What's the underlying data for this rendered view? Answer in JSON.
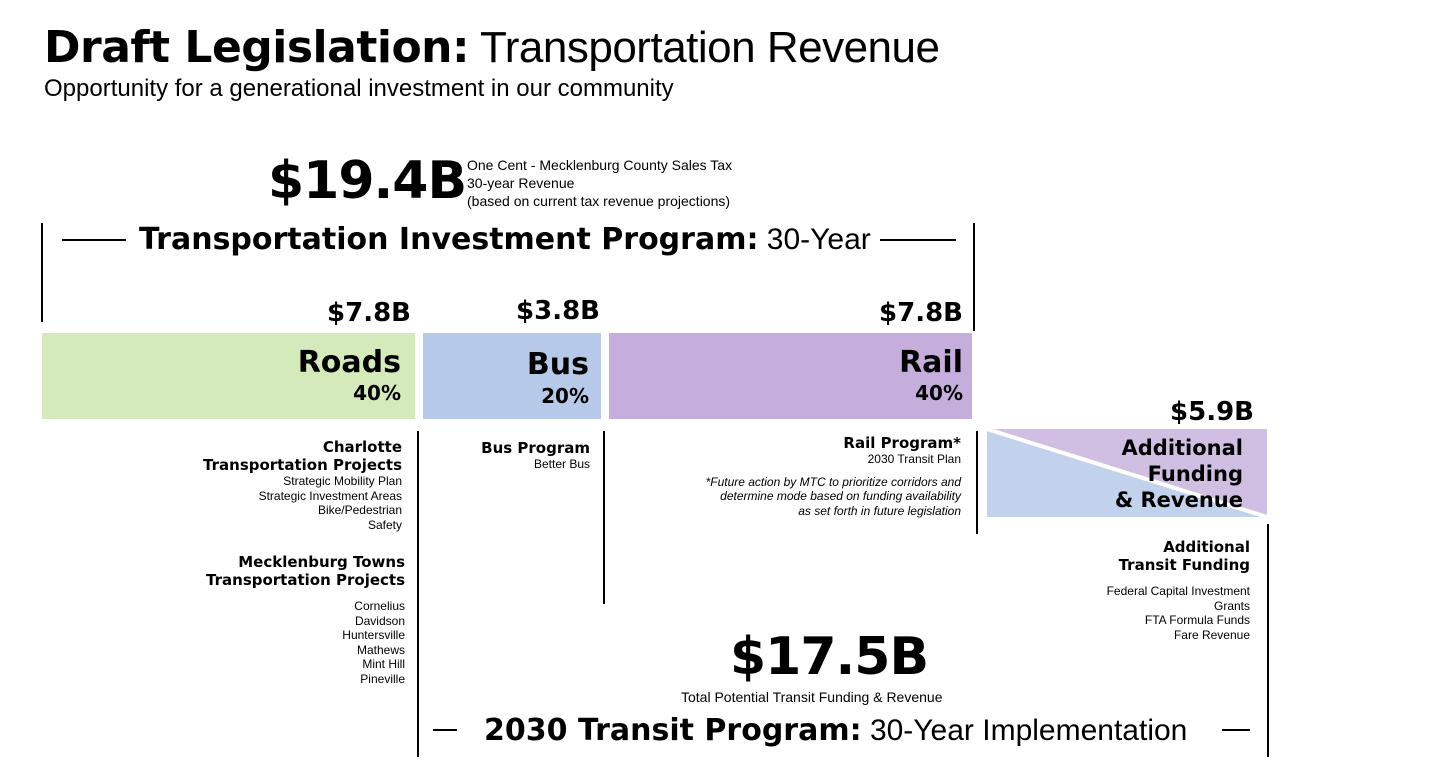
{
  "header": {
    "title_bold": "Draft Legislation:",
    "title_rest": "Transportation Revenue",
    "subtitle": "Opportunity for a generational investment in our community"
  },
  "sales_tax": {
    "amount": "$19.4B",
    "line1": "One Cent - Mecklenburg County Sales Tax",
    "line2": "30-year Revenue",
    "line3": "(based on current tax revenue projections)"
  },
  "investment_program": {
    "title_bold": "Transportation Investment Program:",
    "title_rest": "30-Year"
  },
  "categories": [
    {
      "amount": "$7.8B",
      "label": "Roads",
      "percent": "40%",
      "color": "#d5eabb"
    },
    {
      "amount": "$3.8B",
      "label": "Bus",
      "percent": "20%",
      "color": "#b7c9e8"
    },
    {
      "amount": "$7.8B",
      "label": "Rail",
      "percent": "40%",
      "color": "#c5aedb"
    }
  ],
  "additional": {
    "amount": "$5.9B",
    "label1": "Additional",
    "label2": "Funding",
    "label3": "& Revenue",
    "color_blue": "#c2d2ec",
    "color_purple": "#d1bfe3"
  },
  "roads_details": {
    "charlotte_title1": "Charlotte",
    "charlotte_title2": "Transportation Projects",
    "charlotte_items": [
      "Strategic Mobility Plan",
      "Strategic Investment Areas",
      "Bike/Pedestrian",
      "Safety"
    ],
    "towns_title1": "Mecklenburg Towns",
    "towns_title2": "Transportation Projects",
    "towns_items": [
      "Cornelius",
      "Davidson",
      "Huntersville",
      "Mathews",
      "Mint Hill",
      "Pineville"
    ]
  },
  "bus_details": {
    "title": "Bus Program",
    "subtitle": "Better Bus"
  },
  "rail_details": {
    "title": "Rail Program*",
    "subtitle": "2030 Transit Plan",
    "note1": "*Future action by MTC to prioritize corridors and",
    "note2": "determine mode based on funding availability",
    "note3": "as set forth in future legislation"
  },
  "additional_details": {
    "title1": "Additional",
    "title2": "Transit Funding",
    "items": [
      "Federal Capital Investment",
      "Grants",
      "FTA Formula Funds",
      "Fare Revenue"
    ]
  },
  "transit_total": {
    "amount": "$17.5B",
    "caption": "Total Potential Transit Funding & Revenue"
  },
  "transit_program": {
    "title_bold": "2030 Transit Program:",
    "title_rest": "30-Year Implementation"
  }
}
